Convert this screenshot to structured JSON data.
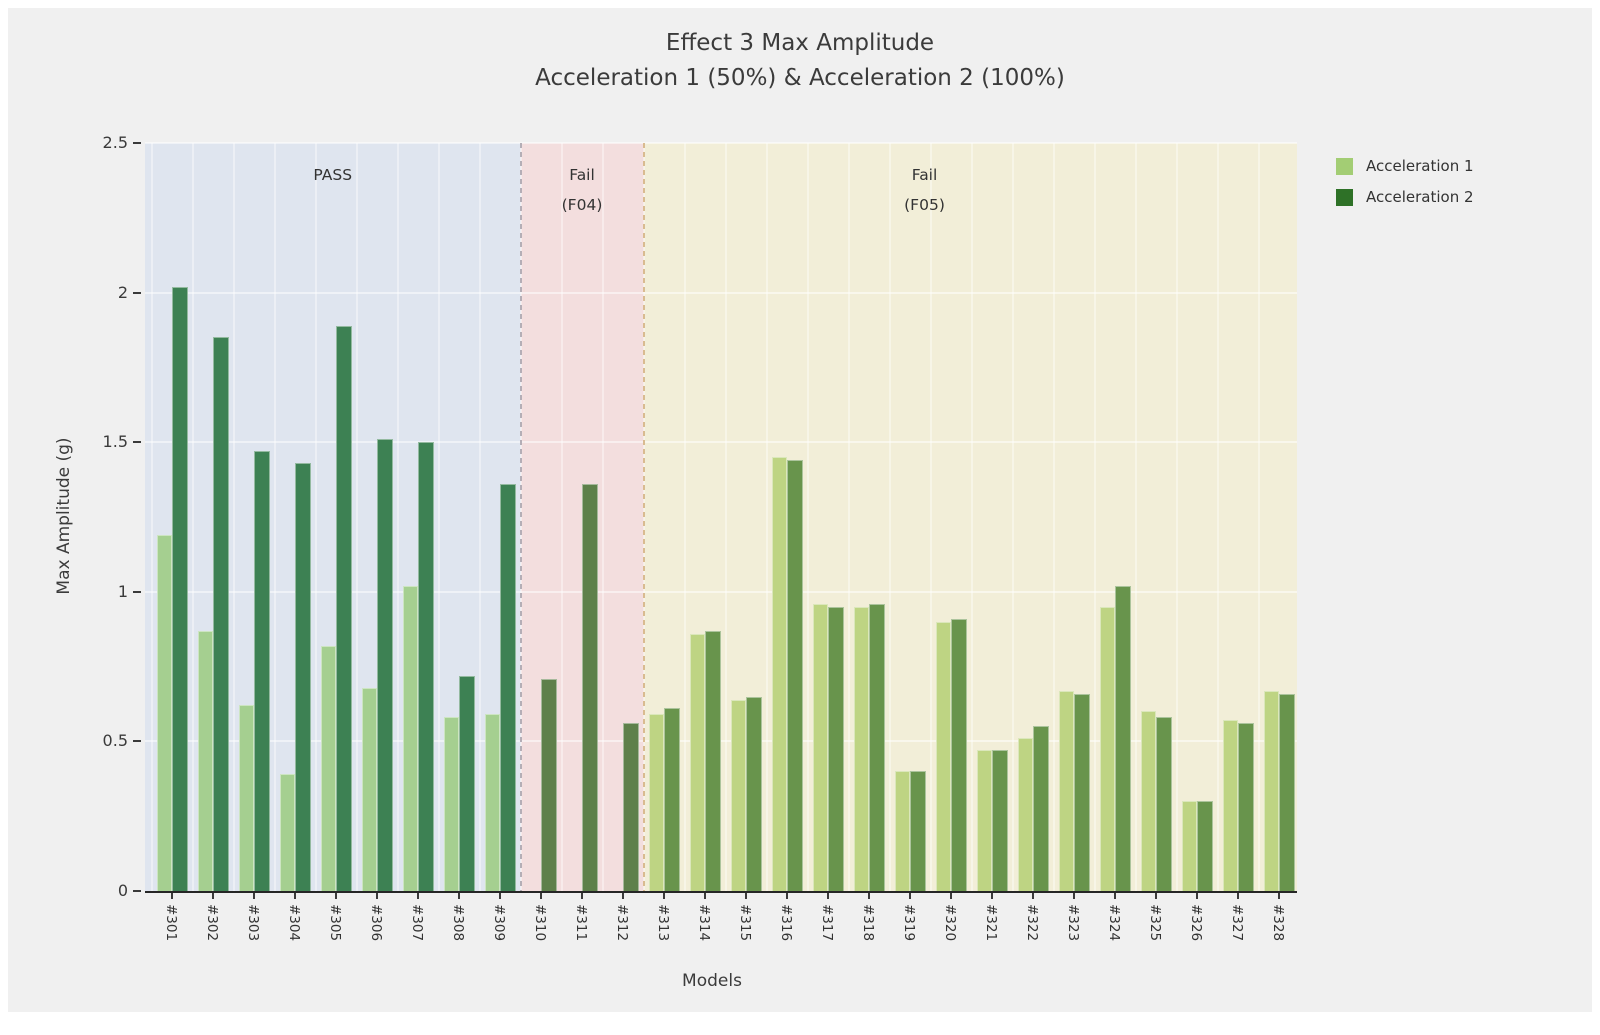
{
  "figure": {
    "title_line1": "Effect 3 Max Amplitude",
    "title_line2": "Acceleration 1 (50%) & Acceleration 2 (100%)"
  },
  "chart_data": {
    "type": "bar",
    "title": "Effect 3 Max Amplitude",
    "subtitle": "Acceleration 1 (50%) & Acceleration 2 (100%)",
    "xlabel": "Models",
    "ylabel": "Max Amplitude (g)",
    "ylim": [
      0,
      2.5
    ],
    "ytick_step": 0.5,
    "grid": true,
    "legend_position": "upper right outside",
    "categories": [
      "#301",
      "#302",
      "#303",
      "#304",
      "#305",
      "#306",
      "#307",
      "#308",
      "#309",
      "#310",
      "#311",
      "#312",
      "#313",
      "#314",
      "#315",
      "#316",
      "#317",
      "#318",
      "#319",
      "#320",
      "#321",
      "#322",
      "#323",
      "#324",
      "#325",
      "#326",
      "#327",
      "#328"
    ],
    "series": [
      {
        "name": "Acceleration 1",
        "color": "#a3cd74",
        "values": [
          1.19,
          0.87,
          0.62,
          0.39,
          0.82,
          0.68,
          1.02,
          0.58,
          0.59,
          null,
          null,
          null,
          0.59,
          0.86,
          0.64,
          1.45,
          0.96,
          0.95,
          0.4,
          0.9,
          0.47,
          0.51,
          0.67,
          0.95,
          0.6,
          0.3,
          0.57,
          0.67
        ]
      },
      {
        "name": "Acceleration 2",
        "color": "#2e7127",
        "values": [
          2.02,
          1.85,
          1.47,
          1.43,
          1.89,
          1.51,
          1.5,
          0.72,
          1.36,
          0.71,
          1.36,
          0.56,
          0.61,
          0.87,
          0.65,
          1.44,
          0.95,
          0.96,
          0.4,
          0.91,
          0.47,
          0.55,
          0.66,
          1.02,
          0.58,
          0.3,
          0.56,
          0.66
        ]
      }
    ],
    "regions": [
      {
        "label_line1": "PASS",
        "label_line2": "",
        "start_index": 0,
        "end_index": 9,
        "bg_color": "#dfe5ef",
        "bar1_color": "#a5cf90",
        "bar2_color": "#3d8153",
        "separator_color": "",
        "label_frac": 0.5
      },
      {
        "label_line1": "Fail",
        "label_line2": "(F04)",
        "start_index": 9,
        "end_index": 12,
        "bg_color": "#f3dede",
        "bar1_color": "#9cb472",
        "bar2_color": "#5e804a",
        "separator_color": "#b4aeb6",
        "label_frac": 0.5
      },
      {
        "label_line1": "Fail",
        "label_line2": "(F05)",
        "start_index": 12,
        "end_index": 28,
        "bg_color": "#f2eed8",
        "bar1_color": "#bed483",
        "bar2_color": "#68944c",
        "separator_color": "#d9bb90",
        "label_frac": 0.43
      }
    ]
  },
  "legend": {
    "items": [
      {
        "label": "Acceleration 1",
        "color": "#a3cd74"
      },
      {
        "label": "Acceleration 2",
        "color": "#2e7127"
      }
    ]
  }
}
